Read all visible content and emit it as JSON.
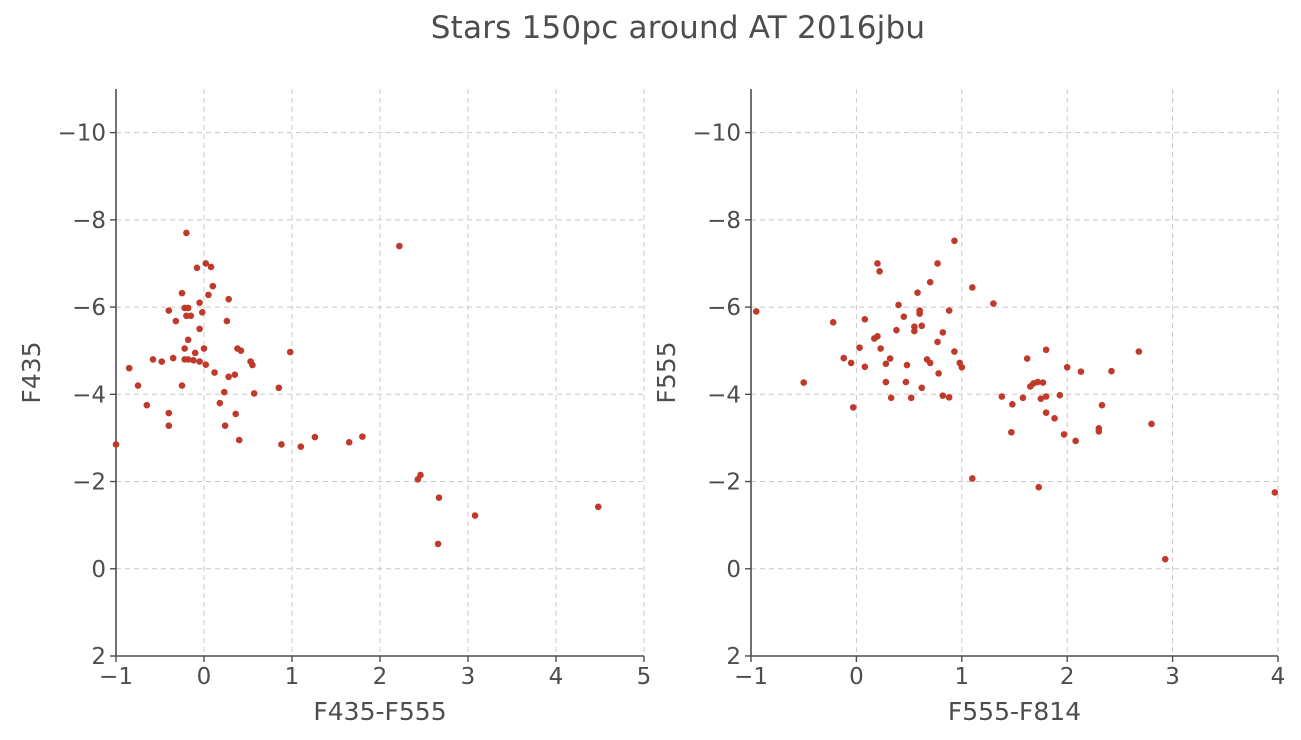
{
  "title": "Stars 150pc around AT 2016jbu",
  "chart_data": [
    {
      "type": "scatter",
      "xlabel": "F435-F555",
      "ylabel": "F435",
      "xlim": [
        -1,
        5
      ],
      "ylim": [
        2,
        -11
      ],
      "y_inverted": true,
      "grid": true,
      "xticks": [
        -1,
        0,
        1,
        2,
        3,
        4,
        5
      ],
      "xtick_labels": [
        "−1",
        "0",
        "1",
        "2",
        "3",
        "4",
        "5"
      ],
      "yticks": [
        -10,
        -8,
        -6,
        -4,
        -2,
        0,
        2
      ],
      "ytick_labels": [
        "−10",
        "−8",
        "−6",
        "−4",
        "−2",
        "0",
        "2"
      ],
      "marker_color": "#c0392b",
      "points": [
        [
          -0.2,
          -7.7
        ],
        [
          0.02,
          -7.0
        ],
        [
          0.08,
          -6.92
        ],
        [
          -0.08,
          -6.9
        ],
        [
          0.1,
          -6.48
        ],
        [
          -0.25,
          -6.32
        ],
        [
          0.05,
          -6.28
        ],
        [
          0.28,
          -6.18
        ],
        [
          -0.05,
          -6.1
        ],
        [
          -0.22,
          -5.98
        ],
        [
          -0.18,
          -5.98
        ],
        [
          -0.4,
          -5.92
        ],
        [
          -0.02,
          -5.88
        ],
        [
          -0.2,
          -5.8
        ],
        [
          -0.15,
          -5.8
        ],
        [
          -0.32,
          -5.68
        ],
        [
          0.26,
          -5.68
        ],
        [
          -0.05,
          -5.5
        ],
        [
          -0.18,
          -5.25
        ],
        [
          -0.22,
          -5.05
        ],
        [
          0.0,
          -5.05
        ],
        [
          0.38,
          -5.05
        ],
        [
          0.42,
          -5.0
        ],
        [
          -0.1,
          -4.95
        ],
        [
          0.98,
          -4.97
        ],
        [
          -0.35,
          -4.83
        ],
        [
          -0.58,
          -4.8
        ],
        [
          -0.48,
          -4.75
        ],
        [
          -0.18,
          -4.8
        ],
        [
          -0.22,
          -4.8
        ],
        [
          -0.12,
          -4.78
        ],
        [
          -0.05,
          -4.75
        ],
        [
          0.53,
          -4.75
        ],
        [
          0.55,
          -4.67
        ],
        [
          0.02,
          -4.68
        ],
        [
          -0.85,
          -4.6
        ],
        [
          0.12,
          -4.5
        ],
        [
          0.35,
          -4.45
        ],
        [
          0.28,
          -4.4
        ],
        [
          -0.25,
          -4.2
        ],
        [
          -0.75,
          -4.2
        ],
        [
          0.85,
          -4.15
        ],
        [
          0.23,
          -4.05
        ],
        [
          0.57,
          -4.02
        ],
        [
          -0.65,
          -3.75
        ],
        [
          0.18,
          -3.8
        ],
        [
          -0.4,
          -3.57
        ],
        [
          0.36,
          -3.55
        ],
        [
          -0.4,
          -3.28
        ],
        [
          0.24,
          -3.28
        ],
        [
          0.4,
          -2.95
        ],
        [
          1.26,
          -3.02
        ],
        [
          1.8,
          -3.03
        ],
        [
          1.65,
          -2.9
        ],
        [
          0.88,
          -2.85
        ],
        [
          1.1,
          -2.8
        ],
        [
          -1.0,
          -2.85
        ],
        [
          2.22,
          -7.4
        ],
        [
          2.46,
          -2.15
        ],
        [
          2.43,
          -2.05
        ],
        [
          2.67,
          -1.63
        ],
        [
          3.08,
          -1.22
        ],
        [
          4.48,
          -1.42
        ],
        [
          2.66,
          -0.57
        ]
      ]
    },
    {
      "type": "scatter",
      "xlabel": "F555-F814",
      "ylabel": "F555",
      "xlim": [
        -1,
        4
      ],
      "ylim": [
        2,
        -11
      ],
      "y_inverted": true,
      "grid": true,
      "xticks": [
        -1,
        0,
        1,
        2,
        3,
        4
      ],
      "xtick_labels": [
        "−1",
        "0",
        "1",
        "2",
        "3",
        "4"
      ],
      "yticks": [
        -10,
        -8,
        -6,
        -4,
        -2,
        0,
        2
      ],
      "ytick_labels": [
        "−10",
        "−8",
        "−6",
        "−4",
        "−2",
        "0",
        "2"
      ],
      "marker_color": "#c0392b",
      "points": [
        [
          0.93,
          -7.52
        ],
        [
          0.2,
          -7.0
        ],
        [
          0.77,
          -7.0
        ],
        [
          0.22,
          -6.82
        ],
        [
          0.7,
          -6.57
        ],
        [
          1.1,
          -6.45
        ],
        [
          0.58,
          -6.33
        ],
        [
          1.3,
          -6.08
        ],
        [
          0.4,
          -6.05
        ],
        [
          -0.95,
          -5.9
        ],
        [
          0.6,
          -5.92
        ],
        [
          0.88,
          -5.92
        ],
        [
          0.6,
          -5.85
        ],
        [
          0.45,
          -5.78
        ],
        [
          0.08,
          -5.72
        ],
        [
          -0.22,
          -5.65
        ],
        [
          0.62,
          -5.57
        ],
        [
          0.55,
          -5.55
        ],
        [
          0.38,
          -5.47
        ],
        [
          0.55,
          -5.45
        ],
        [
          0.82,
          -5.42
        ],
        [
          0.2,
          -5.33
        ],
        [
          0.17,
          -5.28
        ],
        [
          0.77,
          -5.2
        ],
        [
          0.03,
          -5.07
        ],
        [
          0.23,
          -5.05
        ],
        [
          0.93,
          -4.98
        ],
        [
          1.8,
          -5.02
        ],
        [
          2.68,
          -4.98
        ],
        [
          -0.12,
          -4.83
        ],
        [
          0.32,
          -4.82
        ],
        [
          0.67,
          -4.8
        ],
        [
          1.62,
          -4.82
        ],
        [
          -0.05,
          -4.72
        ],
        [
          0.28,
          -4.7
        ],
        [
          0.7,
          -4.72
        ],
        [
          0.98,
          -4.72
        ],
        [
          0.48,
          -4.67
        ],
        [
          1.0,
          -4.62
        ],
        [
          0.08,
          -4.63
        ],
        [
          2.0,
          -4.62
        ],
        [
          2.13,
          -4.52
        ],
        [
          2.42,
          -4.53
        ],
        [
          0.78,
          -4.48
        ],
        [
          -0.5,
          -4.27
        ],
        [
          0.28,
          -4.28
        ],
        [
          0.47,
          -4.28
        ],
        [
          1.68,
          -4.25
        ],
        [
          1.72,
          -4.28
        ],
        [
          1.77,
          -4.27
        ],
        [
          1.65,
          -4.18
        ],
        [
          0.62,
          -4.15
        ],
        [
          0.82,
          -3.97
        ],
        [
          0.88,
          -3.93
        ],
        [
          0.33,
          -3.92
        ],
        [
          0.52,
          -3.92
        ],
        [
          1.38,
          -3.95
        ],
        [
          1.58,
          -3.92
        ],
        [
          1.75,
          -3.9
        ],
        [
          1.8,
          -3.95
        ],
        [
          1.93,
          -3.98
        ],
        [
          1.48,
          -3.77
        ],
        [
          2.33,
          -3.75
        ],
        [
          -0.03,
          -3.7
        ],
        [
          1.8,
          -3.58
        ],
        [
          1.88,
          -3.45
        ],
        [
          2.8,
          -3.32
        ],
        [
          2.3,
          -3.22
        ],
        [
          2.3,
          -3.15
        ],
        [
          1.47,
          -3.13
        ],
        [
          1.97,
          -3.08
        ],
        [
          2.08,
          -2.93
        ],
        [
          1.1,
          -2.07
        ],
        [
          1.73,
          -1.87
        ],
        [
          3.97,
          -1.75
        ],
        [
          2.93,
          -0.22
        ]
      ]
    }
  ]
}
